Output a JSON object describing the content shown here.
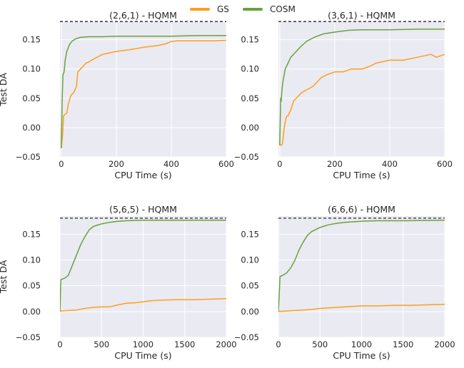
{
  "legend": [
    {
      "label": "GS",
      "color": "#ff9e1b"
    },
    {
      "label": "COSM",
      "color": "#6aa23a"
    }
  ],
  "colors": {
    "panel_bg": "#eaeaf2",
    "grid": "#ffffff",
    "reference_line": "#262626"
  },
  "chart_data": [
    {
      "type": "line",
      "title": "(2,6,1) - HQMM",
      "xlabel": "CPU Time (s)",
      "ylabel": "Test DA",
      "xlim": [
        -5,
        600
      ],
      "ylim": [
        -0.05,
        0.18
      ],
      "xticks": [
        0,
        200,
        400,
        600
      ],
      "yticks": [
        -0.05,
        0.0,
        0.05,
        0.1,
        0.15
      ],
      "ytick_labels": [
        "−0.05",
        "0.00",
        "0.05",
        "0.10",
        "0.15"
      ],
      "reference_y": 0.181,
      "grid": true,
      "series": [
        {
          "name": "GS",
          "color": "#ff9e1b",
          "x": [
            0,
            5,
            8,
            12,
            20,
            25,
            35,
            45,
            55,
            60,
            70,
            80,
            90,
            100,
            110,
            130,
            150,
            170,
            200,
            250,
            300,
            350,
            380,
            400,
            420,
            450,
            500,
            550,
            600
          ],
          "y": [
            -0.035,
            -0.01,
            0.02,
            0.022,
            0.025,
            0.04,
            0.055,
            0.06,
            0.07,
            0.095,
            0.1,
            0.105,
            0.11,
            0.112,
            0.115,
            0.12,
            0.125,
            0.127,
            0.13,
            0.133,
            0.137,
            0.14,
            0.143,
            0.147,
            0.148,
            0.148,
            0.148,
            0.148,
            0.149
          ]
        },
        {
          "name": "COSM",
          "color": "#6aa23a",
          "x": [
            0,
            3,
            6,
            10,
            14,
            20,
            30,
            40,
            55,
            70,
            100,
            150,
            200,
            300,
            400,
            500,
            600
          ],
          "y": [
            -0.035,
            0.05,
            0.09,
            0.095,
            0.115,
            0.13,
            0.142,
            0.148,
            0.152,
            0.154,
            0.155,
            0.155,
            0.156,
            0.156,
            0.156,
            0.157,
            0.157
          ]
        }
      ]
    },
    {
      "type": "line",
      "title": "(3,6,1) - HQMM",
      "xlabel": "CPU Time (s)",
      "ylabel": "",
      "xlim": [
        -5,
        600
      ],
      "ylim": [
        -0.05,
        0.18
      ],
      "xticks": [
        0,
        200,
        400,
        600
      ],
      "yticks": [
        -0.05,
        0.0,
        0.05,
        0.1,
        0.15
      ],
      "ytick_labels": [
        "−0.05",
        "0.00",
        "0.05",
        "0.10",
        "0.15"
      ],
      "reference_y": 0.181,
      "grid": true,
      "series": [
        {
          "name": "GS",
          "color": "#ff9e1b",
          "x": [
            0,
            5,
            10,
            15,
            20,
            25,
            30,
            40,
            50,
            60,
            70,
            80,
            100,
            120,
            150,
            170,
            200,
            230,
            260,
            300,
            330,
            350,
            400,
            450,
            500,
            550,
            570,
            600
          ],
          "y": [
            -0.03,
            -0.03,
            -0.028,
            -0.005,
            0.01,
            0.02,
            0.02,
            0.03,
            0.045,
            0.05,
            0.055,
            0.06,
            0.065,
            0.07,
            0.085,
            0.09,
            0.095,
            0.095,
            0.1,
            0.1,
            0.105,
            0.11,
            0.115,
            0.115,
            0.12,
            0.125,
            0.12,
            0.125
          ]
        },
        {
          "name": "COSM",
          "color": "#6aa23a",
          "x": [
            0,
            3,
            5,
            8,
            12,
            20,
            30,
            40,
            60,
            80,
            100,
            130,
            160,
            200,
            250,
            300,
            400,
            500,
            600
          ],
          "y": [
            -0.03,
            0.05,
            0.045,
            0.065,
            0.08,
            0.1,
            0.11,
            0.12,
            0.13,
            0.14,
            0.148,
            0.155,
            0.16,
            0.163,
            0.166,
            0.167,
            0.167,
            0.168,
            0.168
          ]
        }
      ]
    },
    {
      "type": "line",
      "title": "(5,6,5) - HQMM",
      "xlabel": "CPU Time (s)",
      "ylabel": "Test DA",
      "xlim": [
        0,
        2000
      ],
      "ylim": [
        -0.05,
        0.185
      ],
      "xticks": [
        0,
        500,
        1000,
        1500,
        2000
      ],
      "yticks": [
        -0.05,
        0.0,
        0.05,
        0.1,
        0.15
      ],
      "ytick_labels": [
        "−0.05",
        "0.00",
        "0.05",
        "0.10",
        "0.15"
      ],
      "reference_y": 0.181,
      "grid": true,
      "series": [
        {
          "name": "GS",
          "color": "#ff9e1b",
          "x": [
            0,
            100,
            200,
            300,
            400,
            500,
            600,
            700,
            800,
            900,
            1000,
            1100,
            1200,
            1400,
            1600,
            1800,
            2000
          ],
          "y": [
            0.001,
            0.002,
            0.003,
            0.006,
            0.008,
            0.009,
            0.009,
            0.013,
            0.016,
            0.017,
            0.019,
            0.021,
            0.022,
            0.023,
            0.023,
            0.024,
            0.025
          ]
        },
        {
          "name": "COSM",
          "color": "#6aa23a",
          "x": [
            0,
            10,
            30,
            60,
            100,
            120,
            150,
            200,
            250,
            300,
            350,
            400,
            500,
            600,
            700,
            800,
            1000,
            1200,
            1500,
            2000
          ],
          "y": [
            0.0,
            0.062,
            0.063,
            0.065,
            0.07,
            0.078,
            0.09,
            0.11,
            0.13,
            0.145,
            0.158,
            0.165,
            0.17,
            0.173,
            0.175,
            0.176,
            0.177,
            0.177,
            0.177,
            0.177
          ]
        }
      ]
    },
    {
      "type": "line",
      "title": "(6,6,6) - HQMM",
      "xlabel": "CPU Time (s)",
      "ylabel": "",
      "xlim": [
        0,
        2000
      ],
      "ylim": [
        -0.05,
        0.185
      ],
      "xticks": [
        0,
        500,
        1000,
        1500,
        2000
      ],
      "yticks": [
        -0.05,
        0.0,
        0.05,
        0.1,
        0.15
      ],
      "ytick_labels": [
        "−0.05",
        "0.00",
        "0.05",
        "0.10",
        "0.15"
      ],
      "reference_y": 0.181,
      "grid": true,
      "series": [
        {
          "name": "GS",
          "color": "#ff9e1b",
          "x": [
            0,
            100,
            200,
            300,
            400,
            500,
            600,
            700,
            800,
            900,
            1000,
            1200,
            1400,
            1600,
            1800,
            2000
          ],
          "y": [
            0.0,
            0.001,
            0.002,
            0.003,
            0.004,
            0.006,
            0.007,
            0.008,
            0.009,
            0.01,
            0.011,
            0.011,
            0.012,
            0.012,
            0.013,
            0.014
          ]
        },
        {
          "name": "COSM",
          "color": "#6aa23a",
          "x": [
            0,
            20,
            50,
            100,
            150,
            200,
            250,
            300,
            350,
            400,
            500,
            600,
            700,
            800,
            1000,
            1200,
            1500,
            2000
          ],
          "y": [
            0.0,
            0.068,
            0.07,
            0.075,
            0.085,
            0.1,
            0.12,
            0.135,
            0.148,
            0.155,
            0.163,
            0.168,
            0.171,
            0.173,
            0.175,
            0.176,
            0.176,
            0.177
          ]
        }
      ]
    }
  ]
}
